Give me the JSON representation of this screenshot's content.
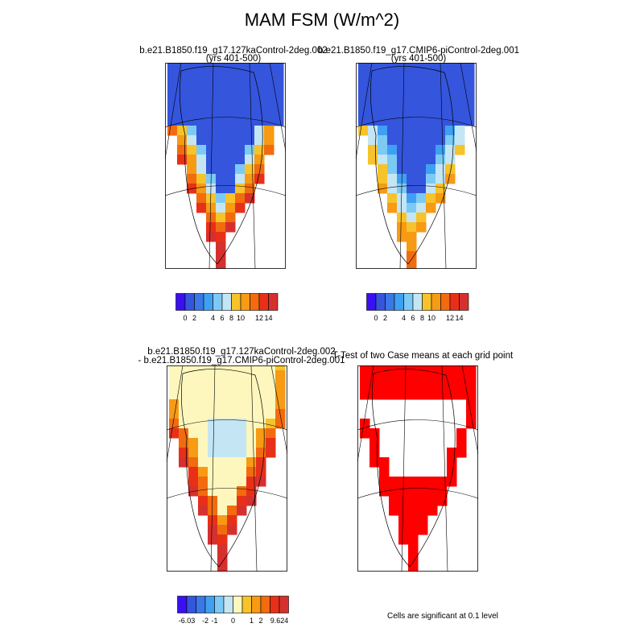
{
  "page": {
    "title": "MAM FSM (W/m^2)"
  },
  "colors": {
    "abs_scale": [
      "#3a10f2",
      "#3455dc",
      "#3a78e6",
      "#3fa0f2",
      "#7ccaf4",
      "#c4e6f4",
      "#f7c32a",
      "#f79a14",
      "#f26b0f",
      "#e83018",
      "#d6302e"
    ],
    "diff_scale": [
      "#3a10f2",
      "#3455dc",
      "#3a78e6",
      "#3fa0f2",
      "#7ccaf4",
      "#c4e6f4",
      "#fdf7bd",
      "#f7c32a",
      "#f79a14",
      "#f26b0f",
      "#e83018",
      "#d6302e"
    ],
    "significance": "#ff0000"
  },
  "chart_data": [
    {
      "type": "heatmap",
      "panel": "top-left",
      "title": "b.e21.B1850.f19_g17.127kaControl-2deg.002",
      "subtitle": "(yrs 401-500)",
      "region": "Greenland",
      "colorbar": {
        "labels": [
          "0",
          "2",
          "4",
          "6",
          "8",
          "10",
          "12",
          "14"
        ],
        "bins": 11
      },
      "summary": "Interior and north ~0 (blue); values increase toward south and east/west margins, up to >14 in the south"
    },
    {
      "type": "heatmap",
      "panel": "top-right",
      "title": "b.e21.B1850.f19_g17.CMIP6-piControl-2deg.001",
      "subtitle": "(yrs 401-500)",
      "region": "Greenland",
      "colorbar": {
        "labels": [
          "0",
          "2",
          "4",
          "6",
          "8",
          "10",
          "12",
          "14"
        ],
        "bins": 11
      },
      "summary": "Similar pattern with smaller marginal values (mostly light blue to orange)"
    },
    {
      "type": "heatmap",
      "panel": "bottom-left",
      "title": "b.e21.B1850.f19_g17.127kaControl-2deg.002",
      "subtitle": "- b.e21.B1850.f19_g17.CMIP6-piControl-2deg.001",
      "region": "Greenland",
      "colorbar": {
        "labels": [
          "-6.03",
          "-2",
          "-1",
          "0",
          "1",
          "2",
          "9.624"
        ],
        "bins": 12
      },
      "summary": "Difference mostly 0 to 1 over the ice sheet, up to 9.624 along southern margins, small negative patches"
    },
    {
      "type": "heatmap",
      "panel": "bottom-right",
      "title": "T-Test of two Case means at each grid point",
      "region": "Greenland",
      "note": "Cells are significant at 0.1 level",
      "summary": "Significant cells shown in red over most of the ice sheet except a central-northern region"
    }
  ]
}
